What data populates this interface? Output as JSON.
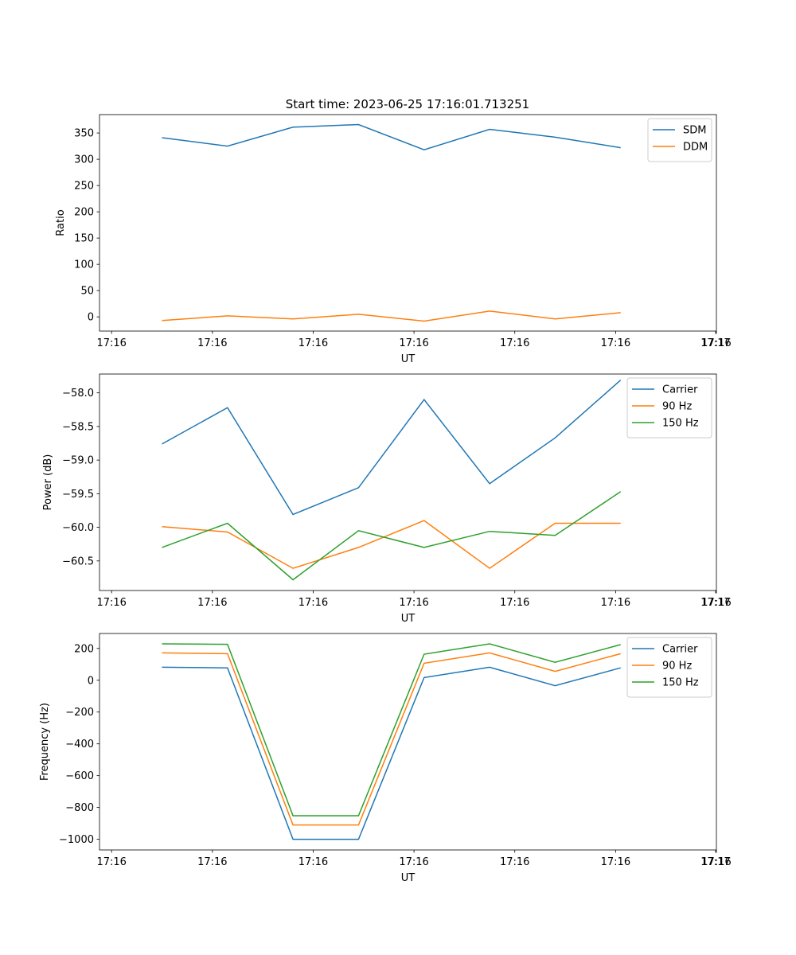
{
  "figure": {
    "title": "Start time: 2023-06-25 17:16:01.713251"
  },
  "chart_data": [
    {
      "type": "line",
      "title": "Start time: 2023-06-25 17:16:01.713251",
      "xlabel": "UT",
      "ylabel": "Ratio",
      "x_tick_labels": [
        "17:16",
        "17:16",
        "17:16",
        "17:16",
        "17:16",
        "17:16",
        "17:16"
      ],
      "x_tick_values": [
        0,
        1,
        2,
        3,
        4,
        5,
        6
      ],
      "x_last_tick_label": "17:17",
      "xlim": [
        -0.12,
        6.0
      ],
      "x": [
        0.5,
        1.15,
        1.8,
        2.45,
        3.1,
        3.75,
        4.4,
        5.05
      ],
      "ylim": [
        -27,
        385
      ],
      "y_ticks": [
        0,
        50,
        100,
        150,
        200,
        250,
        300,
        350
      ],
      "legend": "top-right",
      "series": [
        {
          "name": "SDM",
          "color": "#1f77b4",
          "values": [
            341,
            325,
            361,
            366,
            318,
            357,
            342,
            322
          ]
        },
        {
          "name": "DDM",
          "color": "#ff7f0e",
          "values": [
            -7,
            2,
            -4,
            5,
            -8,
            11,
            -4,
            8
          ]
        }
      ]
    },
    {
      "type": "line",
      "xlabel": "UT",
      "ylabel": "Power (dB)",
      "x_tick_labels": [
        "17:16",
        "17:16",
        "17:16",
        "17:16",
        "17:16",
        "17:16",
        "17:16"
      ],
      "x_tick_values": [
        0,
        1,
        2,
        3,
        4,
        5,
        6
      ],
      "x_last_tick_label": "17:17",
      "xlim": [
        -0.12,
        6.0
      ],
      "x": [
        0.5,
        1.15,
        1.8,
        2.45,
        3.1,
        3.75,
        4.4,
        5.05
      ],
      "ylim": [
        -60.94,
        -57.72
      ],
      "y_ticks": [
        -60.5,
        -60.0,
        -59.5,
        -59.0,
        -58.5,
        -58.0
      ],
      "y_tick_labels": [
        "−60.5",
        "−60.0",
        "−59.5",
        "−59.0",
        "−58.5",
        "−58.0"
      ],
      "legend": "top-right",
      "series": [
        {
          "name": "Carrier",
          "color": "#1f77b4",
          "values": [
            -58.76,
            -58.22,
            -59.81,
            -59.41,
            -58.1,
            -59.35,
            -58.67,
            -57.81
          ]
        },
        {
          "name": "90 Hz",
          "color": "#ff7f0e",
          "values": [
            -59.99,
            -60.07,
            -60.61,
            -60.3,
            -59.9,
            -60.61,
            -59.94,
            -59.94
          ]
        },
        {
          "name": "150 Hz",
          "color": "#2ca02c",
          "values": [
            -60.3,
            -59.94,
            -60.78,
            -60.05,
            -60.3,
            -60.06,
            -60.12,
            -59.47
          ]
        }
      ]
    },
    {
      "type": "line",
      "xlabel": "UT",
      "ylabel": "Frequency (Hz)",
      "x_tick_labels": [
        "17:16",
        "17:16",
        "17:16",
        "17:16",
        "17:16",
        "17:16",
        "17:16"
      ],
      "x_tick_values": [
        0,
        1,
        2,
        3,
        4,
        5,
        6
      ],
      "x_last_tick_label": "17:17",
      "xlim": [
        -0.12,
        6.0
      ],
      "x": [
        0.5,
        1.15,
        1.8,
        2.45,
        3.1,
        3.75,
        4.4,
        5.05
      ],
      "ylim": [
        -1067,
        294
      ],
      "y_ticks": [
        -1000,
        -800,
        -600,
        -400,
        -200,
        0,
        200
      ],
      "y_tick_labels": [
        "−1000",
        "−800",
        "−600",
        "−400",
        "−200",
        "0",
        "200"
      ],
      "legend": "top-right",
      "series": [
        {
          "name": "Carrier",
          "color": "#1f77b4",
          "values": [
            82,
            78,
            -1000,
            -1000,
            17,
            82,
            -34,
            78
          ]
        },
        {
          "name": "90 Hz",
          "color": "#ff7f0e",
          "values": [
            172,
            167,
            -910,
            -910,
            107,
            172,
            56,
            167
          ]
        },
        {
          "name": "150 Hz",
          "color": "#2ca02c",
          "values": [
            229,
            226,
            -852,
            -852,
            164,
            229,
            113,
            224
          ]
        }
      ]
    }
  ]
}
